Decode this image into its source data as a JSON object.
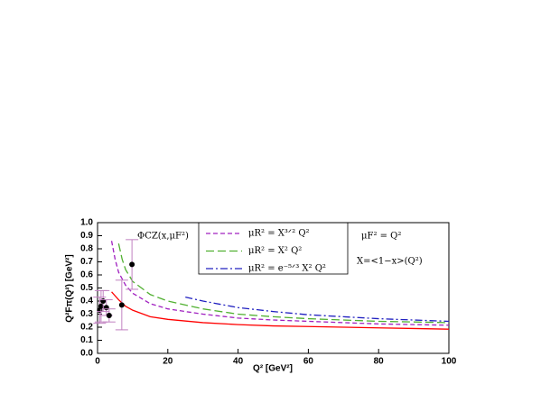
{
  "chart_data": {
    "type": "line",
    "xlabel": "Q² [GeV²]",
    "ylabel": "Q²Fπ(Q²) [GeV²]",
    "annotations": [
      "ΦCZ(x,μF²)",
      "μF² = Q²",
      "X=<1−x>(Q²)"
    ],
    "xlim": [
      0,
      100
    ],
    "xticks": [
      0,
      20,
      40,
      60,
      80,
      100
    ],
    "ylim": [
      0,
      1
    ],
    "yticks": [
      {
        "value": 0,
        "label": "0.0"
      },
      0.1,
      0.2,
      0.3,
      0.4,
      0.5,
      0.6,
      0.7,
      0.8,
      0.9,
      {
        "value": 1,
        "label": "1.0"
      }
    ],
    "series": [
      {
        "name": "μR² = X³ᐟ² Q²",
        "color": "#a020c0",
        "dash": "5,3",
        "x": [
          4,
          5,
          6,
          8,
          10,
          15,
          20,
          30,
          40,
          50,
          60,
          70,
          80,
          90,
          100
        ],
        "values": [
          0.86,
          0.72,
          0.62,
          0.52,
          0.46,
          0.38,
          0.34,
          0.3,
          0.27,
          0.255,
          0.245,
          0.235,
          0.225,
          0.22,
          0.215
        ]
      },
      {
        "name": "μR² = X² Q²",
        "color": "#50b030",
        "dash": "9,4",
        "x": [
          6,
          7,
          8,
          10,
          15,
          20,
          30,
          40,
          50,
          60,
          70,
          80,
          90,
          100
        ],
        "values": [
          0.84,
          0.72,
          0.64,
          0.55,
          0.45,
          0.4,
          0.34,
          0.3,
          0.28,
          0.265,
          0.255,
          0.245,
          0.24,
          0.235
        ]
      },
      {
        "name": "μR² = e⁻⁵ᐟ³ X² Q²",
        "color": "#2020c0",
        "dash": "8,3,2,3",
        "x": [
          25,
          30,
          40,
          50,
          60,
          70,
          80,
          90,
          100
        ],
        "values": [
          0.43,
          0.4,
          0.35,
          0.32,
          0.295,
          0.28,
          0.265,
          0.255,
          0.245
        ]
      },
      {
        "color": "#ff0000",
        "x": [
          4,
          6,
          8,
          10,
          15,
          20,
          30,
          40,
          50,
          60,
          70,
          80,
          90,
          100
        ],
        "values": [
          0.47,
          0.41,
          0.36,
          0.33,
          0.28,
          0.26,
          0.235,
          0.22,
          0.21,
          0.205,
          0.2,
          0.195,
          0.19,
          0.185
        ]
      }
    ],
    "points": {
      "color": "#000000",
      "error_color": "#c080c0",
      "x": [
        0.6,
        1.0,
        1.6,
        2.5,
        3.3,
        6.9,
        9.8
      ],
      "values": [
        0.33,
        0.36,
        0.4,
        0.35,
        0.29,
        0.37,
        0.68
      ],
      "errors": [
        0.1,
        0.12,
        0.08,
        0.06,
        0.05,
        0.19,
        0.19
      ]
    }
  }
}
